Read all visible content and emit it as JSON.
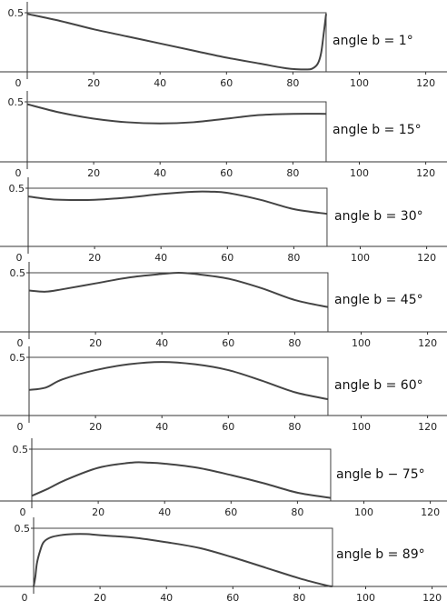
{
  "chart_data": [
    {
      "type": "line",
      "label": "angle b = 1°",
      "xlim": [
        0,
        125
      ],
      "ylim": [
        0,
        0.55
      ],
      "xticks": [
        0,
        20,
        40,
        60,
        80,
        100,
        120
      ],
      "yticks": [
        0.5
      ],
      "xtick_labels": [
        "0",
        "20",
        "40",
        "60",
        "80",
        "100",
        "120"
      ],
      "ytick_labels": [
        "0.5"
      ],
      "box": {
        "xmax": 90,
        "ymax": 0.5
      },
      "x": [
        0,
        10,
        20,
        30,
        40,
        50,
        60,
        70,
        78,
        84,
        86,
        87.5,
        88.5,
        89.3,
        90
      ],
      "y": [
        0.49,
        0.43,
        0.36,
        0.3,
        0.24,
        0.18,
        0.12,
        0.07,
        0.03,
        0.02,
        0.03,
        0.07,
        0.16,
        0.33,
        0.49
      ]
    },
    {
      "type": "line",
      "label": "angle b = 15°",
      "xlim": [
        0,
        125
      ],
      "ylim": [
        0,
        0.55
      ],
      "xticks": [
        0,
        20,
        40,
        60,
        80,
        100,
        120
      ],
      "yticks": [
        0.5
      ],
      "xtick_labels": [
        "0",
        "20",
        "40",
        "60",
        "80",
        "100",
        "120"
      ],
      "ytick_labels": [
        "0.5"
      ],
      "box": {
        "xmax": 90,
        "ymax": 0.5
      },
      "x": [
        0,
        10,
        20,
        30,
        40,
        50,
        60,
        70,
        80,
        90
      ],
      "y": [
        0.48,
        0.41,
        0.36,
        0.33,
        0.32,
        0.33,
        0.36,
        0.39,
        0.4,
        0.4
      ]
    },
    {
      "type": "line",
      "label": "angle b = 30°",
      "xlim": [
        0,
        125
      ],
      "ylim": [
        0,
        0.55
      ],
      "xticks": [
        0,
        20,
        40,
        60,
        80,
        100,
        120
      ],
      "yticks": [
        0.5
      ],
      "xtick_labels": [
        "0",
        "20",
        "40",
        "60",
        "80",
        "100",
        "120"
      ],
      "ytick_labels": [
        "0.5"
      ],
      "box": {
        "xmax": 90,
        "ymax": 0.5
      },
      "x": [
        0,
        5,
        10,
        20,
        30,
        40,
        50,
        55,
        60,
        70,
        80,
        90
      ],
      "y": [
        0.43,
        0.41,
        0.4,
        0.4,
        0.42,
        0.45,
        0.47,
        0.47,
        0.46,
        0.4,
        0.32,
        0.28
      ]
    },
    {
      "type": "line",
      "label": "angle b = 45°",
      "xlim": [
        0,
        125
      ],
      "ylim": [
        0,
        0.55
      ],
      "xticks": [
        0,
        20,
        40,
        60,
        80,
        100,
        120
      ],
      "yticks": [
        0.5
      ],
      "xtick_labels": [
        "0",
        "20",
        "40",
        "60",
        "80",
        "100",
        "120"
      ],
      "ytick_labels": [
        "0.5"
      ],
      "box": {
        "xmax": 90,
        "ymax": 0.5
      },
      "x": [
        0,
        5,
        10,
        20,
        30,
        40,
        45,
        50,
        60,
        70,
        80,
        90
      ],
      "y": [
        0.35,
        0.34,
        0.36,
        0.41,
        0.46,
        0.49,
        0.5,
        0.49,
        0.45,
        0.37,
        0.27,
        0.21
      ]
    },
    {
      "type": "line",
      "label": "angle b = 60°",
      "xlim": [
        0,
        125
      ],
      "ylim": [
        0,
        0.55
      ],
      "xticks": [
        0,
        20,
        40,
        60,
        80,
        100,
        120
      ],
      "yticks": [
        0.5
      ],
      "xtick_labels": [
        "0",
        "20",
        "40",
        "60",
        "80",
        "100",
        "120"
      ],
      "ytick_labels": [
        "0.5"
      ],
      "box": {
        "xmax": 90,
        "ymax": 0.5
      },
      "x": [
        0,
        5,
        10,
        20,
        30,
        40,
        50,
        60,
        70,
        80,
        90
      ],
      "y": [
        0.22,
        0.24,
        0.31,
        0.39,
        0.44,
        0.46,
        0.44,
        0.39,
        0.3,
        0.2,
        0.14
      ]
    },
    {
      "type": "line",
      "label": "angle b − 75°",
      "xlim": [
        0,
        125
      ],
      "ylim": [
        0,
        0.55
      ],
      "xticks": [
        0,
        20,
        40,
        60,
        80,
        100,
        120
      ],
      "yticks": [
        0.5
      ],
      "xtick_labels": [
        "0",
        "20",
        "40",
        "60",
        "80",
        "100",
        "120"
      ],
      "ytick_labels": [
        "0.5"
      ],
      "box": {
        "xmax": 90,
        "ymax": 0.5
      },
      "x": [
        0,
        5,
        10,
        20,
        30,
        35,
        40,
        50,
        60,
        70,
        80,
        90
      ],
      "y": [
        0.05,
        0.12,
        0.2,
        0.32,
        0.37,
        0.37,
        0.36,
        0.32,
        0.25,
        0.17,
        0.08,
        0.03
      ]
    },
    {
      "type": "line",
      "label": "angle b = 89°",
      "xlim": [
        0,
        125
      ],
      "ylim": [
        0,
        0.55
      ],
      "xticks": [
        0,
        20,
        40,
        60,
        80,
        100,
        120
      ],
      "yticks": [
        0.5
      ],
      "xtick_labels": [
        "0",
        "20",
        "40",
        "60",
        "80",
        "100",
        "120"
      ],
      "ytick_labels": [
        "0.5"
      ],
      "box": {
        "xmax": 90,
        "ymax": 0.5
      },
      "x": [
        0,
        0.5,
        1,
        2,
        3,
        5,
        8,
        12,
        16,
        20,
        30,
        40,
        50,
        60,
        70,
        80,
        88,
        90
      ],
      "y": [
        0,
        0.08,
        0.2,
        0.31,
        0.38,
        0.42,
        0.44,
        0.45,
        0.45,
        0.44,
        0.42,
        0.38,
        0.33,
        0.25,
        0.16,
        0.07,
        0.01,
        0
      ]
    }
  ]
}
